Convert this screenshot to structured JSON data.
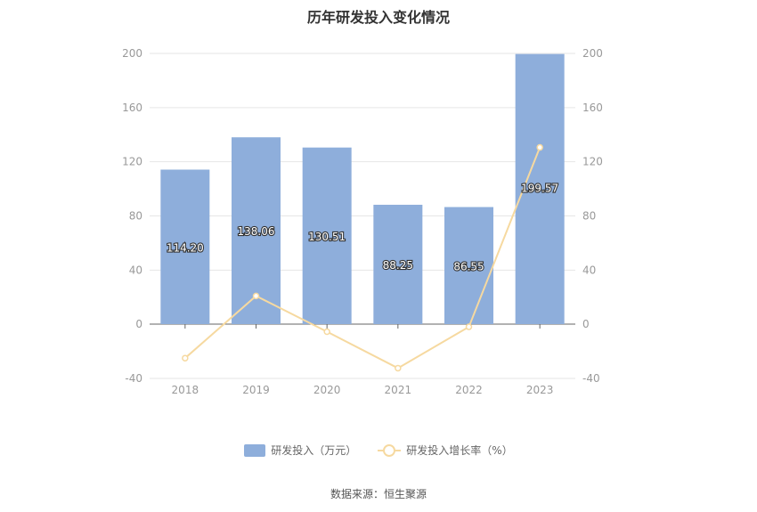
{
  "title": "历年研发投入变化情况",
  "source": "数据来源：恒生聚源",
  "legend": {
    "bar_label": "研发投入（万元）",
    "line_label": "研发投入增长率（%）"
  },
  "colors": {
    "bar": "#8eaedb",
    "line": "#f6d9a0",
    "axis_text": "#999999",
    "grid": "#e6e6e6",
    "data_label": "#ffffff"
  },
  "chart_data": {
    "type": "bar",
    "categories": [
      "2018",
      "2019",
      "2020",
      "2021",
      "2022",
      "2023"
    ],
    "series": [
      {
        "name": "研发投入（万元）",
        "type": "bar",
        "axis": "left",
        "values": [
          114.2,
          138.06,
          130.51,
          88.25,
          86.55,
          199.57
        ],
        "labels": [
          "114.20",
          "138.06",
          "130.51",
          "88.25",
          "86.55",
          "199.57"
        ]
      },
      {
        "name": "研发投入增长率（%）",
        "type": "line",
        "axis": "right",
        "values": [
          -25,
          20.9,
          -5.5,
          -32.4,
          -1.9,
          130.6
        ]
      }
    ],
    "y_left": {
      "min": -40,
      "max": 200,
      "ticks": [
        "-40",
        "0",
        "40",
        "80",
        "120",
        "160",
        "200"
      ]
    },
    "y_right": {
      "min": -40,
      "max": 200,
      "ticks": [
        "-40",
        "0",
        "40",
        "80",
        "120",
        "160",
        "200"
      ]
    },
    "grid": true,
    "legend_position": "bottom"
  }
}
